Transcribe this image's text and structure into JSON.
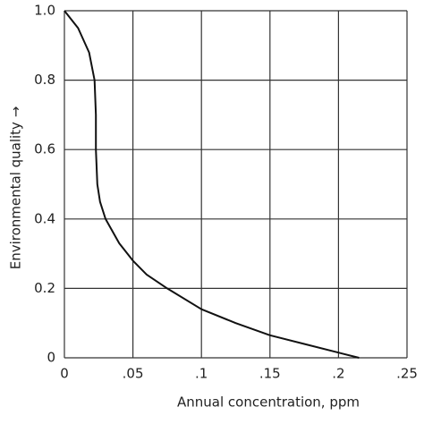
{
  "chart_data": {
    "type": "line",
    "xlabel": "Annual concentration, ppm",
    "ylabel": "Environmental quality →",
    "x": [
      0,
      0.01,
      0.018,
      0.022,
      0.023,
      0.023,
      0.024,
      0.026,
      0.03,
      0.04,
      0.05,
      0.06,
      0.075,
      0.1,
      0.125,
      0.15,
      0.175,
      0.2,
      0.215
    ],
    "values": [
      1.0,
      0.95,
      0.88,
      0.8,
      0.7,
      0.6,
      0.5,
      0.45,
      0.4,
      0.33,
      0.28,
      0.24,
      0.2,
      0.14,
      0.1,
      0.065,
      0.04,
      0.015,
      0
    ],
    "color": "#111111",
    "xlim": [
      0,
      0.25
    ],
    "xticks": [
      0,
      {
        "value": 0.05,
        "label": ".05"
      },
      {
        "value": 0.1,
        "label": ".1"
      },
      {
        "value": 0.15,
        "label": ".15"
      },
      {
        "value": 0.2,
        "label": ".2"
      },
      {
        "value": 0.25,
        "label": ".25"
      }
    ],
    "ylim": [
      0,
      1.0
    ],
    "yticks": [
      0,
      {
        "value": 0.2,
        "label": "0.2"
      },
      {
        "value": 0.4,
        "label": "0.4"
      },
      {
        "value": 0.6,
        "label": "0.6"
      },
      {
        "value": 0.8,
        "label": "0.8"
      },
      {
        "value": 1.0,
        "label": "1.0"
      }
    ],
    "grid": true
  }
}
